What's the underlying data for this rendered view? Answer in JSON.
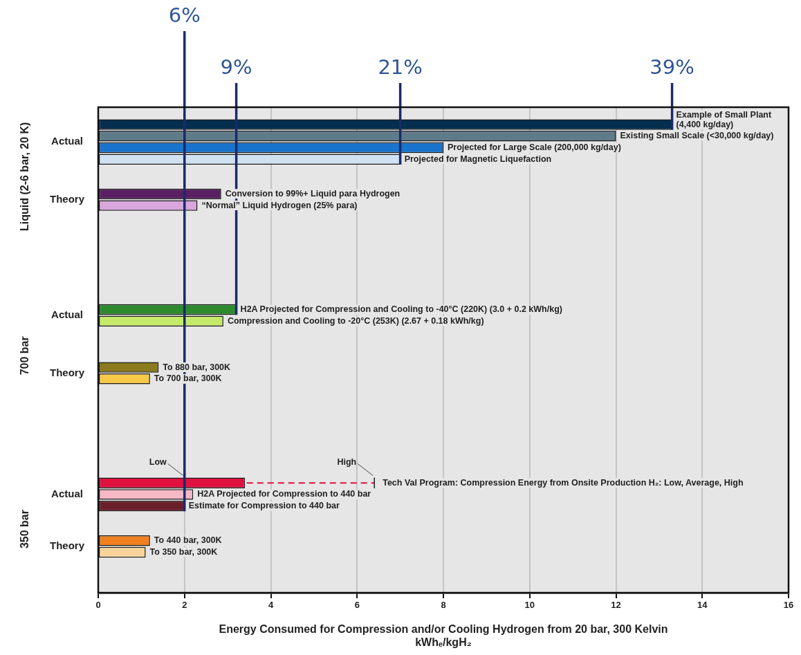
{
  "chart_data": {
    "type": "bar",
    "orientation": "horizontal",
    "xlabel": "Energy Consumed for Compression and/or Cooling Hydrogen from 20 bar, 300 Kelvin\nkWhₑ/kgH₂",
    "categories": [
      null,
      "Example of Small Plant (4,400 kg/day)",
      "Existing Small Scale (<30,000 kg/day)",
      "Projected for Large Scale (200,000 kg/day)",
      "Projected for Magnetic Liquefaction",
      null,
      null,
      "Conversion to 99%+ Liquid para Hydrogen",
      "“Normal” Liquid Hydrogen (25% para)",
      null,
      null,
      null,
      null,
      null,
      null,
      null,
      null,
      "H2A Projected for Compression and Cooling to -40°C (220K) (3.0 + 0.2 kWh/kg)",
      "Compression and Cooling to -20°C (253K) (2.67 + 0.18 kWh/kg)",
      null,
      null,
      null,
      "To 880 bar, 300K",
      "To 700 bar, 300K",
      null,
      null,
      null,
      null,
      null,
      null,
      null,
      null,
      "Tech Val Program: Compression Energy from Onsite Production H₂: Low, Average, High",
      "H2A Projected for Compression to 440 bar",
      "Estimate for Compression to 440 bar",
      null,
      null,
      "To 440 bar, 300K",
      "To 350 bar, 300K",
      null,
      null,
      null
    ],
    "values": [
      null,
      13.3,
      12.0,
      8.0,
      7.0,
      null,
      null,
      2.85,
      2.3,
      null,
      null,
      null,
      null,
      null,
      null,
      null,
      null,
      3.2,
      2.9,
      null,
      null,
      null,
      1.4,
      1.2,
      null,
      null,
      null,
      null,
      null,
      null,
      null,
      null,
      3.4,
      2.2,
      2.0,
      null,
      null,
      1.2,
      1.1,
      null,
      null,
      null
    ],
    "colors": [
      null,
      "#062f4f",
      "#5f7b8a",
      "#1874cd",
      "#d0e1f2",
      null,
      null,
      "#5a1e63",
      "#d9a6dd",
      null,
      null,
      null,
      null,
      null,
      null,
      null,
      null,
      "#2e8b2e",
      "#c5ea6a",
      null,
      null,
      null,
      "#8b7a1e",
      "#f7c948",
      null,
      null,
      null,
      null,
      null,
      null,
      null,
      null,
      "#e0103f",
      "#f5b8c4",
      "#6b1f2a",
      null,
      null,
      "#f08020",
      "#f8d49a",
      null,
      null,
      null
    ],
    "errors": [
      null,
      null,
      null,
      null,
      null,
      null,
      null,
      null,
      null,
      null,
      null,
      null,
      null,
      null,
      null,
      null,
      null,
      null,
      null,
      null,
      null,
      null,
      null,
      null,
      null,
      null,
      null,
      null,
      null,
      null,
      null,
      null,
      [
        2.0,
        6.4
      ],
      null,
      null,
      null,
      null,
      null,
      null,
      null,
      null,
      null
    ],
    "xlim": [
      0,
      16
    ],
    "xticks": [
      0,
      2,
      4,
      6,
      8,
      10,
      12,
      14,
      16
    ],
    "grid": "x",
    "legend": false,
    "annotations": [
      {
        "text": "Low",
        "x": 2.0,
        "y": "Tech Val Program: Compression Energy from Onsite Production H₂: Low, Average, High"
      },
      {
        "text": "High",
        "x": 6.4,
        "y": "Tech Val Program: Compression Energy from Onsite Production H₂: Low, Average, High"
      },
      {
        "text": "6%",
        "x": 2.0,
        "y": "Estimate for Compression to 440 bar"
      },
      {
        "text": "9%",
        "x": 3.2,
        "y": "H2A Projected for Compression and Cooling to -40°C (220K) (3.0 + 0.2 kWh/kg)"
      },
      {
        "text": "21%",
        "x": 7.0,
        "y": "Projected for Magnetic Liquefaction"
      },
      {
        "text": "39%",
        "x": 13.3,
        "y": "Example of Small Plant (4,400 kg/day)"
      },
      "Actual",
      "Theory",
      "Actual",
      "Theory",
      "Actual",
      "Theory",
      "Liquid (2-6 bar, 20 K)",
      "700 bar",
      "350 bar"
    ]
  }
}
